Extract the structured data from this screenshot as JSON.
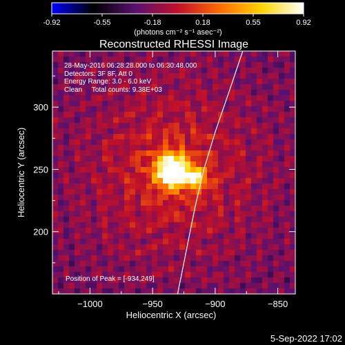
{
  "colorbar": {
    "ticks": [
      "-0.92",
      "-0.55",
      "-0.18",
      "0.18",
      "0.55",
      "0.92"
    ],
    "units": "(photons cm⁻² s⁻¹ asec⁻²)",
    "colormap": [
      "#0000ff",
      "#000000",
      "#5a1070",
      "#c0102a",
      "#ff6a00",
      "#ffd400",
      "#ffffff"
    ]
  },
  "chart_data": {
    "type": "heatmap",
    "title": "Reconstructed RHESSI Image",
    "xlabel": "Heliocentric X (arcsec)",
    "ylabel": "Heliocentric Y (arcsec)",
    "xlim": [
      -1030,
      -836
    ],
    "ylim": [
      150,
      345
    ],
    "xticks": [
      -1000,
      -950,
      -900,
      -850
    ],
    "yticks": [
      200,
      250,
      300
    ],
    "xtick_labels": [
      "−1000",
      "−950",
      "−900",
      "−850"
    ],
    "ytick_labels": [
      "200",
      "250",
      "300"
    ],
    "annotations": [
      "28-May-2016 06:28:28.000 to 06:30:48.000",
      "Detectors: 3F 8F, Att 0",
      "Energy Range: 3.0 - 6.0 keV",
      "Clean     Total counts: 9.38E+03"
    ],
    "peak_label": "Position of Peak = [-934,249]",
    "peak": [
      -934,
      249
    ],
    "secondary_source": [
      -915,
      243
    ],
    "limb_curve": [
      [
        -930,
        150
      ],
      [
        -924,
        180
      ],
      [
        -916,
        220
      ],
      [
        -909,
        250
      ],
      [
        -900,
        280
      ],
      [
        -888,
        315
      ],
      [
        -878,
        345
      ]
    ]
  },
  "footer": {
    "date": "5-Sep-2022 17:02"
  }
}
